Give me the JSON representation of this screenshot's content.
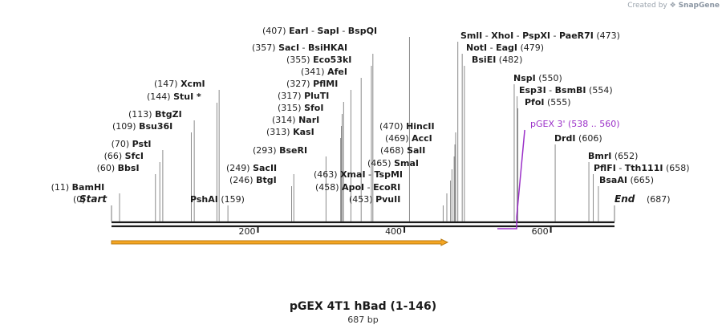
{
  "credit": {
    "prefix": "Created by",
    "brand": "SnapGene"
  },
  "map": {
    "title": "pGEX 4T1 hBad (1-146)",
    "length_label": "687 bp",
    "total_bp": 687,
    "ticks": [
      200,
      400,
      600
    ],
    "ends": [
      {
        "name": "Start",
        "pos_label": "(0)",
        "pos": 0
      },
      {
        "name": "End",
        "pos_label": "(687)",
        "pos": 687
      }
    ],
    "sites": [
      {
        "pos": 11,
        "names": [
          "BamHI"
        ]
      },
      {
        "pos": 60,
        "names": [
          "BbsI"
        ]
      },
      {
        "pos": 66,
        "names": [
          "SfcI"
        ]
      },
      {
        "pos": 70,
        "names": [
          "PstI"
        ]
      },
      {
        "pos": 109,
        "names": [
          "Bsu36I"
        ]
      },
      {
        "pos": 113,
        "names": [
          "BtgZI"
        ]
      },
      {
        "pos": 144,
        "names": [
          "StuI *"
        ]
      },
      {
        "pos": 147,
        "names": [
          "XcmI"
        ]
      },
      {
        "pos": 159,
        "names": [
          "PshAI"
        ]
      },
      {
        "pos": 246,
        "names": [
          "BtgI"
        ]
      },
      {
        "pos": 249,
        "names": [
          "SacII"
        ]
      },
      {
        "pos": 293,
        "names": [
          "BseRI"
        ]
      },
      {
        "pos": 313,
        "names": [
          "KasI"
        ]
      },
      {
        "pos": 314,
        "names": [
          "NarI"
        ]
      },
      {
        "pos": 315,
        "names": [
          "SfoI"
        ]
      },
      {
        "pos": 317,
        "names": [
          "PluTI"
        ]
      },
      {
        "pos": 327,
        "names": [
          "PflMI"
        ]
      },
      {
        "pos": 341,
        "names": [
          "AfeI"
        ]
      },
      {
        "pos": 355,
        "names": [
          "Eco53kI"
        ]
      },
      {
        "pos": 357,
        "names": [
          "SacI",
          "BsiHKAI"
        ]
      },
      {
        "pos": 407,
        "names": [
          "EarI",
          "SapI",
          "BspQI"
        ]
      },
      {
        "pos": 453,
        "names": [
          "PvuII"
        ]
      },
      {
        "pos": 458,
        "names": [
          "ApoI",
          "EcoRI"
        ]
      },
      {
        "pos": 463,
        "names": [
          "XmaI",
          "TspMI"
        ]
      },
      {
        "pos": 465,
        "names": [
          "SmaI"
        ]
      },
      {
        "pos": 468,
        "names": [
          "SalI"
        ]
      },
      {
        "pos": 469,
        "names": [
          "AccI"
        ]
      },
      {
        "pos": 470,
        "names": [
          "HincII"
        ]
      },
      {
        "pos": 473,
        "names": [
          "SmlI",
          "XhoI",
          "PspXI",
          "PaeR7I"
        ]
      },
      {
        "pos": 479,
        "names": [
          "NotI",
          "EagI"
        ]
      },
      {
        "pos": 482,
        "names": [
          "BsiEI"
        ]
      },
      {
        "pos": 550,
        "names": [
          "NspI"
        ]
      },
      {
        "pos": 554,
        "names": [
          "Esp3I",
          "BsmBI"
        ]
      },
      {
        "pos": 555,
        "names": [
          "PfoI"
        ]
      },
      {
        "pos": 606,
        "names": [
          "DrdI"
        ]
      },
      {
        "pos": 652,
        "names": [
          "BmrI"
        ]
      },
      {
        "pos": 658,
        "names": [
          "PflFI",
          "Tth111I"
        ]
      },
      {
        "pos": 665,
        "names": [
          "BsaAI"
        ]
      }
    ],
    "primer": {
      "name": "pGEX 3'",
      "range_label": "(538 .. 560)",
      "start": 538,
      "end": 560,
      "color": "#9b30c8"
    },
    "feature": {
      "start": 0,
      "end": 459,
      "fill": "#f5a623",
      "edge": "#b87a12"
    }
  }
}
